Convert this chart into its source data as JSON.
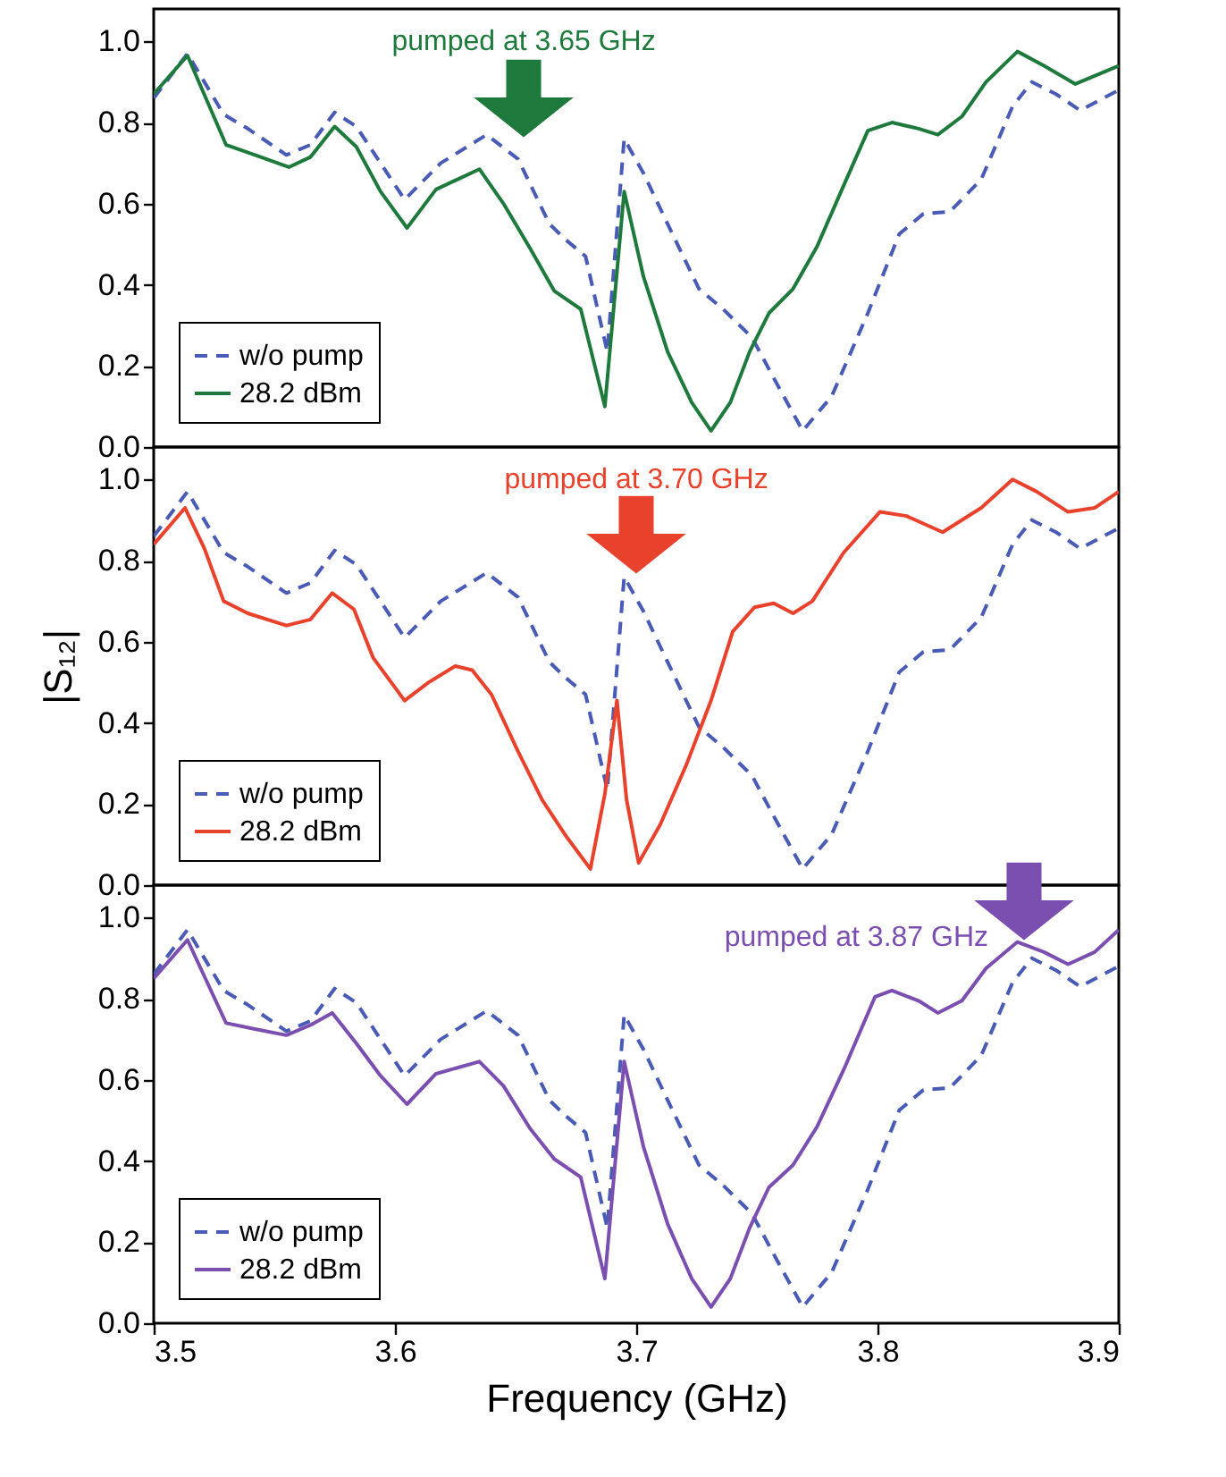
{
  "chart_data": [
    {
      "type": "line",
      "series": [
        {
          "name": "w/o pump",
          "color": "#4a5bb5",
          "line_style": "dashed",
          "x": [
            3.5,
            3.514,
            3.529,
            3.539,
            3.555,
            3.565,
            3.575,
            3.584,
            3.604,
            3.619,
            3.638,
            3.651,
            3.664,
            3.671,
            3.679,
            3.688,
            3.695,
            3.703,
            3.713,
            3.726,
            3.736,
            3.748,
            3.757,
            3.769,
            3.781,
            3.796,
            3.809,
            3.819,
            3.83,
            3.843,
            3.856,
            3.864,
            3.874,
            3.884,
            3.9
          ],
          "values": [
            0.86,
            0.97,
            0.82,
            0.785,
            0.72,
            0.745,
            0.825,
            0.79,
            0.61,
            0.7,
            0.77,
            0.71,
            0.55,
            0.51,
            0.47,
            0.235,
            0.76,
            0.675,
            0.55,
            0.39,
            0.34,
            0.27,
            0.17,
            0.04,
            0.125,
            0.33,
            0.525,
            0.575,
            0.58,
            0.66,
            0.84,
            0.9,
            0.87,
            0.83,
            0.88
          ]
        },
        {
          "name": "28.2 dBm",
          "color": "#1e7a3c",
          "line_style": "solid",
          "x": [
            3.5,
            3.514,
            3.53,
            3.542,
            3.556,
            3.565,
            3.575,
            3.584,
            3.594,
            3.605,
            3.617,
            3.635,
            3.645,
            3.656,
            3.666,
            3.677,
            3.687,
            3.695,
            3.703,
            3.713,
            3.723,
            3.731,
            3.739,
            3.747,
            3.755,
            3.765,
            3.775,
            3.786,
            3.796,
            3.806,
            3.817,
            3.825,
            3.835,
            3.845,
            3.858,
            3.869,
            3.882,
            3.892,
            3.9
          ],
          "values": [
            0.87,
            0.965,
            0.745,
            0.72,
            0.69,
            0.715,
            0.79,
            0.74,
            0.63,
            0.54,
            0.635,
            0.685,
            0.6,
            0.49,
            0.385,
            0.34,
            0.1,
            0.63,
            0.42,
            0.235,
            0.11,
            0.04,
            0.11,
            0.235,
            0.33,
            0.39,
            0.495,
            0.645,
            0.78,
            0.8,
            0.785,
            0.77,
            0.815,
            0.9,
            0.975,
            0.94,
            0.895,
            0.92,
            0.94
          ]
        }
      ],
      "xlim": [
        3.5,
        3.9
      ],
      "xticks": [
        3.5,
        3.6,
        3.7,
        3.8,
        3.9
      ],
      "ylim": [
        0,
        1.08
      ],
      "yticks": [
        {
          "value": 0,
          "label": "0.0"
        },
        {
          "value": 0.2,
          "label": "0.2"
        },
        {
          "value": 0.4,
          "label": "0.4"
        },
        {
          "value": 0.6,
          "label": "0.6"
        },
        {
          "value": 0.8,
          "label": "0.8"
        },
        {
          "value": 1,
          "label": "1.0"
        }
      ],
      "legend": "bottom left",
      "tick_labels": "y",
      "annotations": [
        "pumped at 3.65 GHz"
      ]
    },
    {
      "type": "line",
      "ylabel": "|S₁₂|",
      "series": [
        {
          "name": "w/o pump",
          "color": "#4a5bb5",
          "line_style": "dashed",
          "x": [
            3.5,
            3.514,
            3.529,
            3.539,
            3.555,
            3.565,
            3.575,
            3.584,
            3.604,
            3.619,
            3.638,
            3.651,
            3.664,
            3.671,
            3.679,
            3.688,
            3.695,
            3.703,
            3.713,
            3.726,
            3.736,
            3.748,
            3.757,
            3.769,
            3.781,
            3.796,
            3.809,
            3.819,
            3.83,
            3.843,
            3.856,
            3.864,
            3.874,
            3.884,
            3.9
          ],
          "values": [
            0.86,
            0.97,
            0.82,
            0.785,
            0.72,
            0.745,
            0.825,
            0.79,
            0.61,
            0.7,
            0.77,
            0.71,
            0.55,
            0.51,
            0.47,
            0.235,
            0.76,
            0.675,
            0.55,
            0.39,
            0.34,
            0.27,
            0.17,
            0.04,
            0.125,
            0.33,
            0.525,
            0.575,
            0.58,
            0.66,
            0.84,
            0.9,
            0.87,
            0.83,
            0.88
          ]
        },
        {
          "name": "28.2 dBm",
          "color": "#e8412c",
          "line_style": "solid",
          "x": [
            3.5,
            3.513,
            3.521,
            3.529,
            3.539,
            3.555,
            3.565,
            3.574,
            3.583,
            3.591,
            3.604,
            3.614,
            3.625,
            3.632,
            3.64,
            3.651,
            3.661,
            3.671,
            3.681,
            3.687,
            3.692,
            3.696,
            3.701,
            3.71,
            3.721,
            3.731,
            3.74,
            3.749,
            3.757,
            3.765,
            3.773,
            3.786,
            3.801,
            3.812,
            3.827,
            3.843,
            3.856,
            3.866,
            3.879,
            3.89,
            3.9
          ],
          "values": [
            0.84,
            0.93,
            0.83,
            0.7,
            0.67,
            0.64,
            0.655,
            0.72,
            0.68,
            0.56,
            0.455,
            0.5,
            0.54,
            0.53,
            0.47,
            0.33,
            0.21,
            0.12,
            0.04,
            0.225,
            0.455,
            0.21,
            0.055,
            0.15,
            0.3,
            0.455,
            0.625,
            0.685,
            0.695,
            0.67,
            0.7,
            0.82,
            0.92,
            0.91,
            0.87,
            0.93,
            1.0,
            0.97,
            0.92,
            0.93,
            0.97
          ]
        }
      ],
      "xlim": [
        3.5,
        3.9
      ],
      "xticks": [
        3.5,
        3.6,
        3.7,
        3.8,
        3.9
      ],
      "ylim": [
        0,
        1.08
      ],
      "yticks": [
        {
          "value": 0,
          "label": "0.0"
        },
        {
          "value": 0.2,
          "label": "0.2"
        },
        {
          "value": 0.4,
          "label": "0.4"
        },
        {
          "value": 0.6,
          "label": "0.6"
        },
        {
          "value": 0.8,
          "label": "0.8"
        },
        {
          "value": 1,
          "label": "1.0"
        }
      ],
      "legend": "bottom left",
      "tick_labels": "y",
      "annotations": [
        "pumped at 3.70 GHz"
      ]
    },
    {
      "type": "line",
      "xlabel": "Frequency (GHz)",
      "series": [
        {
          "name": "w/o pump",
          "color": "#4a5bb5",
          "line_style": "dashed",
          "x": [
            3.5,
            3.514,
            3.529,
            3.539,
            3.555,
            3.565,
            3.575,
            3.584,
            3.604,
            3.619,
            3.638,
            3.651,
            3.664,
            3.671,
            3.679,
            3.688,
            3.695,
            3.703,
            3.713,
            3.726,
            3.736,
            3.748,
            3.757,
            3.769,
            3.781,
            3.796,
            3.809,
            3.819,
            3.83,
            3.843,
            3.856,
            3.864,
            3.874,
            3.884,
            3.9
          ],
          "values": [
            0.86,
            0.97,
            0.82,
            0.785,
            0.72,
            0.745,
            0.825,
            0.79,
            0.61,
            0.7,
            0.77,
            0.71,
            0.55,
            0.51,
            0.47,
            0.235,
            0.76,
            0.675,
            0.55,
            0.39,
            0.34,
            0.27,
            0.17,
            0.04,
            0.125,
            0.33,
            0.525,
            0.575,
            0.58,
            0.66,
            0.84,
            0.9,
            0.87,
            0.83,
            0.88
          ]
        },
        {
          "name": "28.2 dBm",
          "color": "#7a4fb0",
          "line_style": "solid",
          "x": [
            3.5,
            3.514,
            3.53,
            3.542,
            3.555,
            3.565,
            3.574,
            3.584,
            3.594,
            3.605,
            3.617,
            3.635,
            3.645,
            3.656,
            3.666,
            3.677,
            3.687,
            3.695,
            3.703,
            3.713,
            3.723,
            3.731,
            3.739,
            3.747,
            3.755,
            3.765,
            3.775,
            3.786,
            3.799,
            3.806,
            3.817,
            3.825,
            3.835,
            3.845,
            3.858,
            3.869,
            3.879,
            3.89,
            3.9
          ],
          "values": [
            0.85,
            0.945,
            0.74,
            0.725,
            0.71,
            0.735,
            0.765,
            0.69,
            0.61,
            0.54,
            0.615,
            0.645,
            0.585,
            0.48,
            0.405,
            0.36,
            0.11,
            0.645,
            0.435,
            0.245,
            0.11,
            0.04,
            0.11,
            0.235,
            0.335,
            0.39,
            0.485,
            0.625,
            0.805,
            0.82,
            0.795,
            0.765,
            0.795,
            0.875,
            0.94,
            0.915,
            0.885,
            0.915,
            0.97
          ]
        }
      ],
      "xlim": [
        3.5,
        3.9
      ],
      "xticks": [
        3.5,
        3.6,
        3.7,
        3.8,
        3.9
      ],
      "ylim": [
        0,
        1.08
      ],
      "yticks": [
        {
          "value": 0,
          "label": "0.0"
        },
        {
          "value": 0.2,
          "label": "0.2"
        },
        {
          "value": 0.4,
          "label": "0.4"
        },
        {
          "value": 0.6,
          "label": "0.6"
        },
        {
          "value": 0.8,
          "label": "0.8"
        },
        {
          "value": 1,
          "label": "1.0"
        }
      ],
      "legend": "bottom left",
      "annotations": [
        "pumped at 3.87 GHz"
      ]
    }
  ]
}
